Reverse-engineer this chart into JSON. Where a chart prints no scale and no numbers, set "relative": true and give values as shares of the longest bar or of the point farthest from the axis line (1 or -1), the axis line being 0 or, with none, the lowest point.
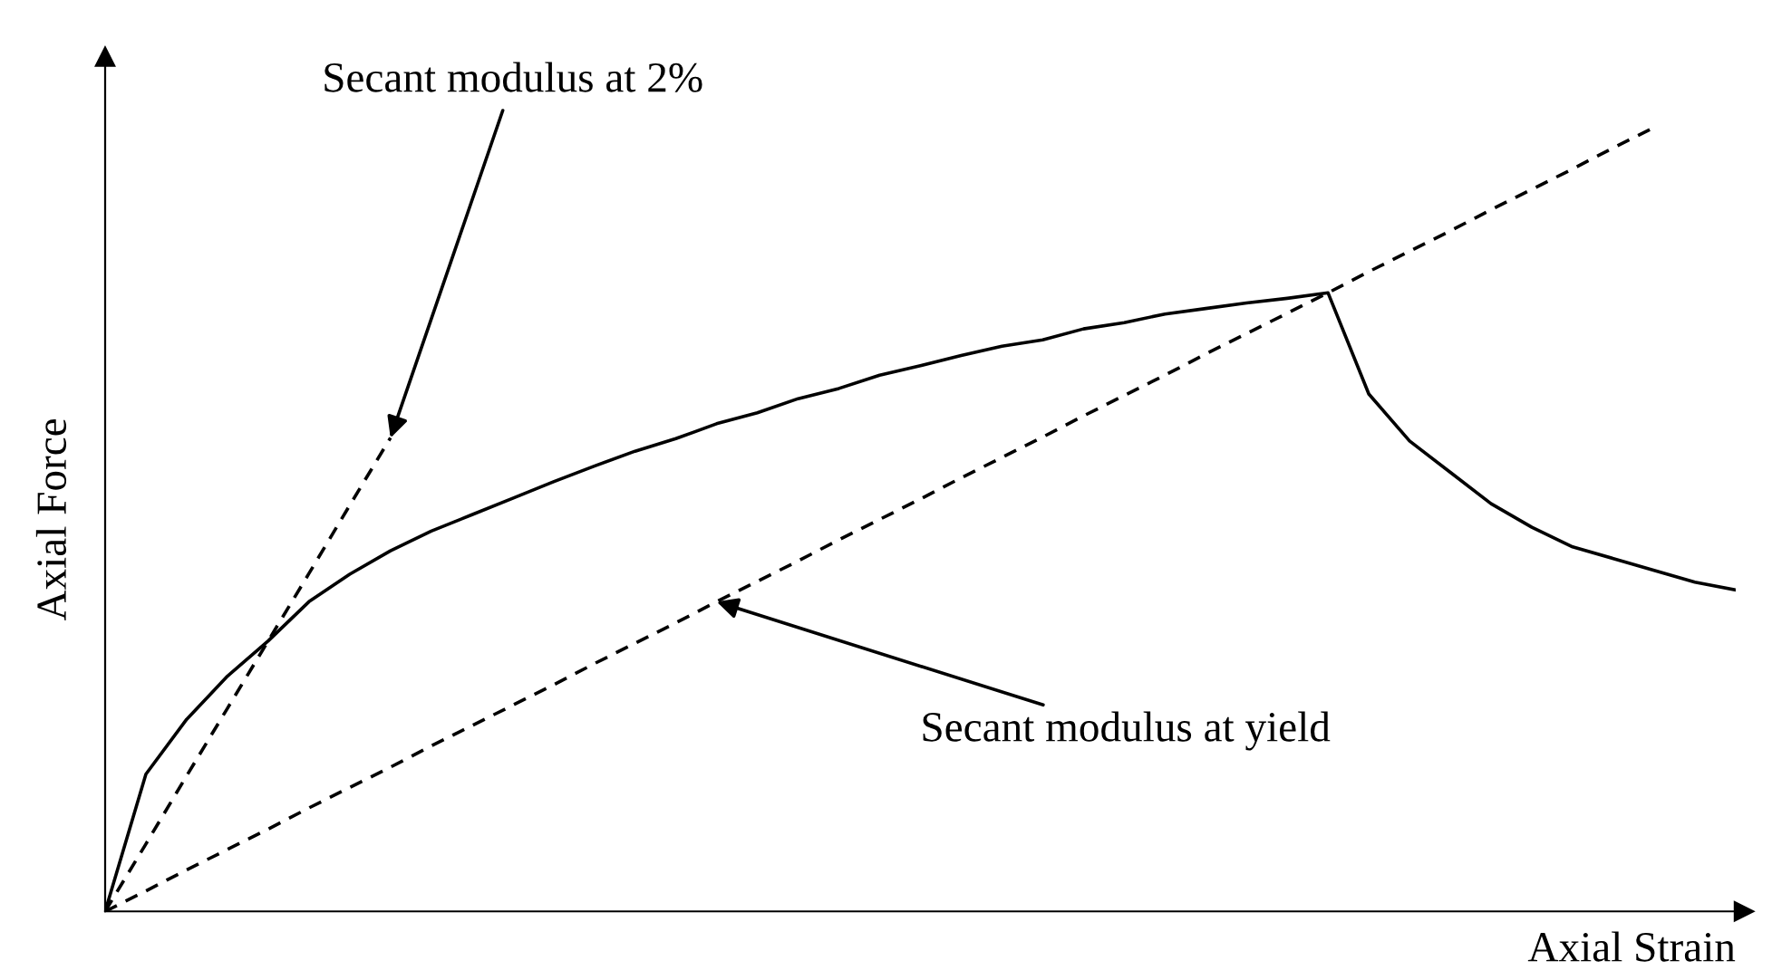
{
  "chart_data": {
    "type": "line",
    "relative": true,
    "xlabel": "Axial Strain",
    "ylabel": "Axial Force",
    "legend": false,
    "tick_labels": false,
    "categories": [
      null,
      null,
      null,
      null,
      null,
      null,
      null,
      null,
      null,
      null,
      null,
      null,
      null,
      null,
      null,
      null,
      null,
      null,
      null,
      null,
      null,
      null,
      null,
      null,
      null,
      null,
      null,
      null,
      null,
      null,
      null,
      null,
      null,
      null,
      null,
      null,
      null,
      null,
      null,
      null,
      null
    ],
    "series": [
      {
        "color": "#000000",
        "line_style": "solid",
        "values": [
          0,
          0.175,
          0.245,
          0.3,
          0.345,
          0.395,
          0.43,
          0.46,
          0.485,
          0.506,
          0.527,
          0.548,
          0.568,
          0.587,
          0.603,
          0.622,
          0.636,
          0.654,
          0.667,
          0.684,
          0.696,
          0.709,
          0.721,
          0.729,
          0.743,
          0.751,
          0.762,
          0.769,
          0.776,
          0.782,
          0.789,
          0.66,
          0.6,
          0.56,
          0.52,
          0.49,
          0.465,
          0.45,
          0.435,
          0.42,
          0.41
        ]
      },
      {
        "color": "#000000",
        "line_style": "dashed",
        "values": [
          0,
          0.086,
          0.173,
          0.259,
          0.345,
          0.431,
          0.518,
          0.604,
          null,
          null,
          null,
          null,
          null,
          null,
          null,
          null,
          null,
          null,
          null,
          null,
          null,
          null,
          null,
          null,
          null,
          null,
          null,
          null,
          null,
          null,
          null,
          null,
          null,
          null,
          null,
          null,
          null,
          null,
          null,
          null,
          null
        ]
      },
      {
        "color": "#000000",
        "line_style": "dashed",
        "values": [
          0,
          0.026,
          0.053,
          0.079,
          0.105,
          0.132,
          0.158,
          0.184,
          0.211,
          0.237,
          0.263,
          0.289,
          0.316,
          0.342,
          0.368,
          0.395,
          0.421,
          0.447,
          0.474,
          0.5,
          0.526,
          0.553,
          0.579,
          0.605,
          0.632,
          0.658,
          0.684,
          0.711,
          0.737,
          0.763,
          0.789,
          0.816,
          0.842,
          0.868,
          0.895,
          0.921,
          0.947,
          0.974,
          1.0,
          null,
          null
        ]
      }
    ],
    "annotations": [
      "Secant modulus at 2%",
      "Secant modulus at yield"
    ]
  }
}
